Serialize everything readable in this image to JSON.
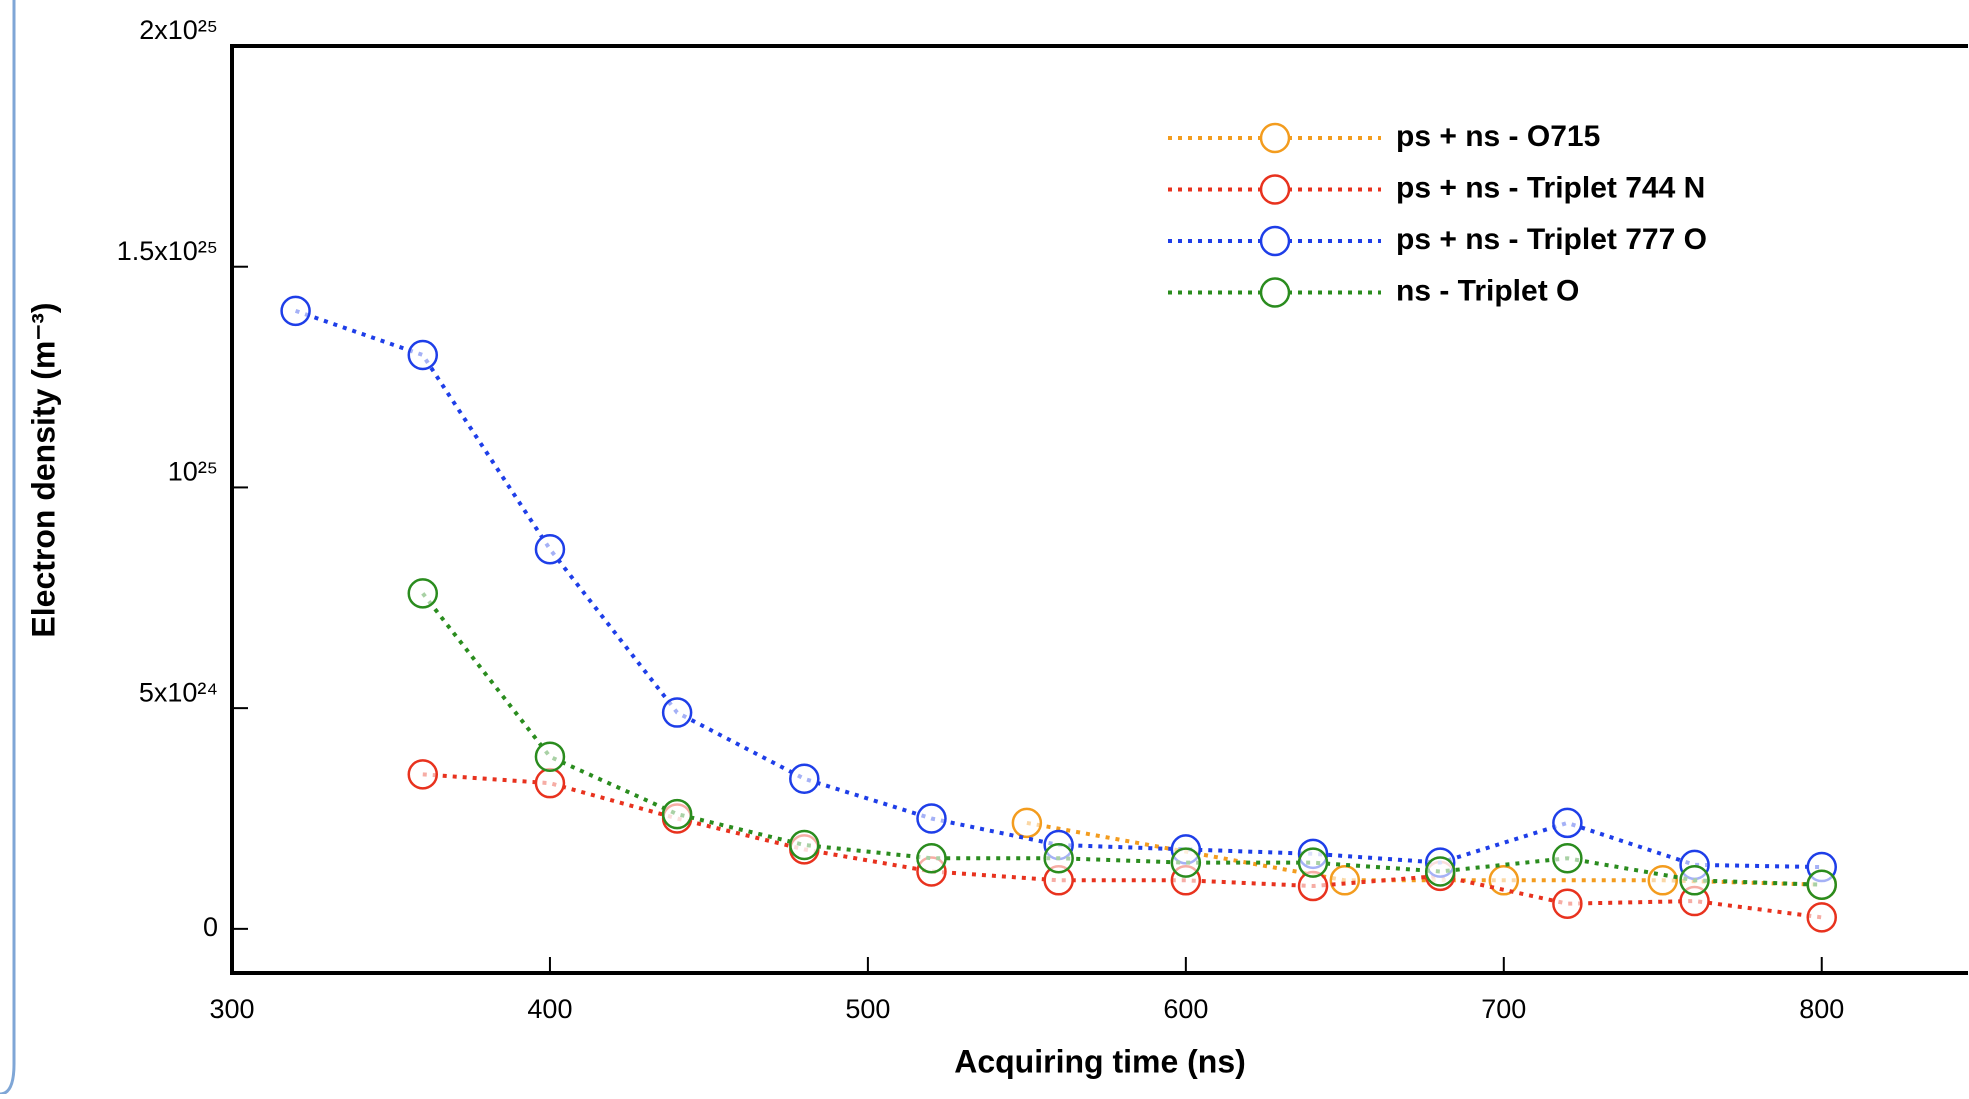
{
  "chart_data": {
    "type": "line",
    "x_label": "Acquiring time (ns)",
    "y_label": "Electron density (m⁻³)",
    "xlim": [
      300,
      846
    ],
    "xticks": [
      300,
      400,
      500,
      600,
      700,
      800
    ],
    "ylim": [
      -1e+24,
      2e+25
    ],
    "yticks": [
      0,
      {
        "value": 5e+24,
        "label": "5x10²⁴"
      },
      {
        "value": 1e+25,
        "label": "10²⁵"
      },
      {
        "value": 1.5e+25,
        "label": "1.5x10²⁵"
      },
      {
        "value": 2e+25,
        "label": "2x10²⁵"
      }
    ],
    "legend": "upper right",
    "series": [
      {
        "name": "ps + ns - O715",
        "color": "#f39c1e",
        "x": [
          550,
          650,
          700,
          750,
          800
        ],
        "values": [
          2.4e+24,
          1.1e+24,
          1.1e+24,
          1.1e+24,
          1e+24
        ]
      },
      {
        "name": "ps + ns - Triplet 744 N",
        "color": "#e8321e",
        "x": [
          360,
          400,
          440,
          480,
          520,
          560,
          600,
          640,
          680,
          720,
          760,
          800
        ],
        "values": [
          3.5e+24,
          3.3e+24,
          2.5e+24,
          1.8e+24,
          1.3e+24,
          1.1e+24,
          1.1e+24,
          9.7e+23,
          1.2e+24,
          5.7e+23,
          6.3e+23,
          2.6e+23
        ]
      },
      {
        "name": "ps + ns - Triplet 777 O",
        "color": "#1e3ee8",
        "x": [
          320,
          360,
          400,
          440,
          480,
          520,
          560,
          600,
          640,
          680,
          720,
          760,
          800
        ],
        "values": [
          1.4e+25,
          1.3e+25,
          8.6e+24,
          4.9e+24,
          3.4e+24,
          2.5e+24,
          1.9e+24,
          1.8e+24,
          1.7e+24,
          1.5e+24,
          2.4e+24,
          1.45e+24,
          1.4e+24
        ]
      },
      {
        "name": "ns - Triplet O",
        "color": "#2a8c1e",
        "x": [
          360,
          400,
          440,
          480,
          520,
          560,
          600,
          640,
          680,
          720,
          760,
          800
        ],
        "values": [
          7.6e+24,
          3.9e+24,
          2.6e+24,
          1.9e+24,
          1.6e+24,
          1.6e+24,
          1.5e+24,
          1.5e+24,
          1.3e+24,
          1.6e+24,
          1.1e+24,
          1e+24
        ]
      }
    ]
  }
}
